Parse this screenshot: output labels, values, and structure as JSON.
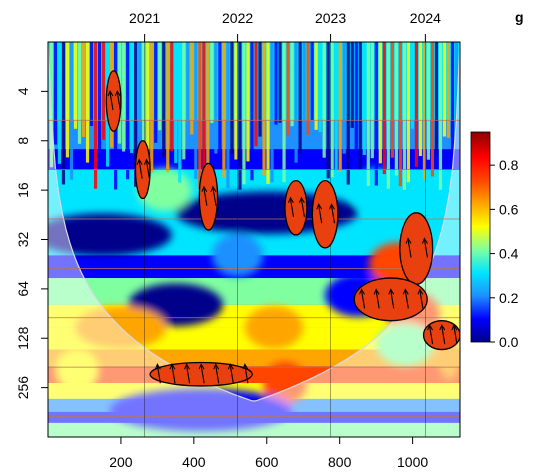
{
  "title_fragment": "g",
  "chart_data": {
    "type": "heatmap",
    "title": "",
    "xlabel": "",
    "ylabel": "",
    "x_ticks": [
      200,
      400,
      600,
      800,
      1000
    ],
    "x_tick_labels": [
      "200",
      "400",
      "600",
      "800",
      "1000"
    ],
    "xlim": [
      0,
      1130
    ],
    "top_axis_years": [
      {
        "label": "2021",
        "x": 265
      },
      {
        "label": "2022",
        "x": 520
      },
      {
        "label": "2023",
        "x": 775
      },
      {
        "label": "2024",
        "x": 1035
      }
    ],
    "y_scale": "log2-reversed",
    "y_ticks": [
      4,
      8,
      16,
      32,
      64,
      128,
      256
    ],
    "y_tick_labels": [
      "4",
      "8",
      "16",
      "32",
      "64",
      "128",
      "256"
    ],
    "ylim": [
      2,
      512
    ],
    "colorbar": {
      "ticks": [
        0.0,
        0.2,
        0.4,
        0.6,
        0.8
      ],
      "tick_labels": [
        "0.0",
        "0.2",
        "0.4",
        "0.6",
        "0.8"
      ],
      "range": [
        0.0,
        0.95
      ],
      "colors": [
        "#00008b",
        "#0000ff",
        "#1e90ff",
        "#00e5ff",
        "#7fffa0",
        "#ffff00",
        "#ffa500",
        "#ff4500",
        "#ff0000",
        "#8b0000"
      ]
    },
    "significant_regions": [
      {
        "x_center": 180,
        "period_center": 5,
        "x_width": 40,
        "period_range": [
          3,
          7
        ]
      },
      {
        "x_center": 260,
        "period_center": 12,
        "x_width": 40,
        "period_range": [
          8,
          18
        ]
      },
      {
        "x_center": 440,
        "period_center": 18,
        "x_width": 50,
        "period_range": [
          11,
          28
        ]
      },
      {
        "x_center": 680,
        "period_center": 20,
        "x_width": 60,
        "period_range": [
          14,
          30
        ]
      },
      {
        "x_center": 760,
        "period_center": 24,
        "x_width": 70,
        "period_range": [
          14,
          36
        ]
      },
      {
        "x_center": 1010,
        "period_center": 34,
        "x_width": 90,
        "period_range": [
          22,
          60
        ]
      },
      {
        "x_center": 940,
        "period_center": 75,
        "x_width": 200,
        "period_range": [
          55,
          100
        ]
      },
      {
        "x_center": 1080,
        "period_center": 120,
        "x_width": 100,
        "period_range": [
          100,
          150
        ]
      },
      {
        "x_center": 420,
        "period_center": 210,
        "x_width": 280,
        "period_range": [
          180,
          250
        ]
      }
    ]
  }
}
